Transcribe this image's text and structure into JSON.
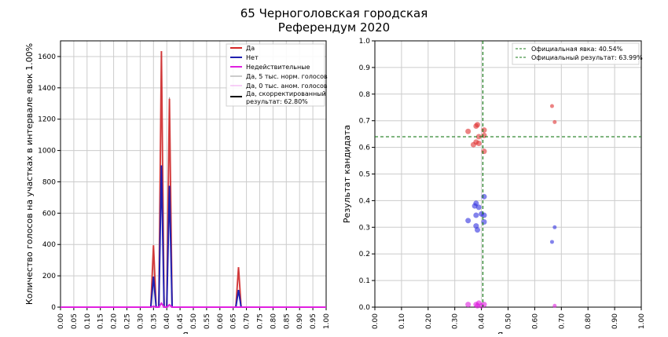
{
  "title": "65 Черноголовская городская",
  "subtitle": "Референдум 2020",
  "chart_data": [
    {
      "type": "line",
      "xlabel": "Явка",
      "ylabel": "Количество голосов на участках в интервале явок 1.00%",
      "xlim": [
        0,
        1
      ],
      "ylim": [
        0,
        1700
      ],
      "xticks": [
        "0.00",
        "0.05",
        "0.10",
        "0.15",
        "0.20",
        "0.25",
        "0.30",
        "0.35",
        "0.40",
        "0.45",
        "0.50",
        "0.55",
        "0.60",
        "0.65",
        "0.70",
        "0.75",
        "0.80",
        "0.85",
        "0.90",
        "0.95",
        "1.00"
      ],
      "yticks": [
        "0",
        "200",
        "400",
        "600",
        "800",
        "1000",
        "1200",
        "1400",
        "1600"
      ],
      "grid": true,
      "legend_position": "top-right",
      "peaks_x": [
        0.35,
        0.38,
        0.41,
        0.67
      ],
      "series": [
        {
          "name": "Да",
          "color": "#d62728",
          "values": [
            395,
            1635,
            1330,
            255
          ]
        },
        {
          "name": "Нет",
          "color": "#2020b0",
          "values": [
            195,
            905,
            775,
            110
          ]
        },
        {
          "name": "Недействительные",
          "color": "#e020e0",
          "values": [
            5,
            25,
            15,
            0
          ]
        },
        {
          "name": "Да, 5 тыс. норм. голосов",
          "color": "#999999",
          "values": [
            390,
            1630,
            1340,
            250
          ]
        },
        {
          "name": "Да, 0 тыс. аном. голосов",
          "color": "#f0a0f0",
          "values": [
            0,
            0,
            0,
            0
          ]
        },
        {
          "name": "Да, скорректированный результат: 62.80%",
          "color": "#000000",
          "values": []
        }
      ]
    },
    {
      "type": "scatter",
      "xlabel": "Явка",
      "ylabel": "Результат кандидата",
      "xlim": [
        0,
        1
      ],
      "ylim": [
        0,
        1
      ],
      "xticks": [
        "0.00",
        "0.10",
        "0.20",
        "0.30",
        "0.40",
        "0.50",
        "0.60",
        "0.70",
        "0.80",
        "0.90",
        "1.00"
      ],
      "yticks": [
        "0.0",
        "0.1",
        "0.2",
        "0.3",
        "0.4",
        "0.5",
        "0.6",
        "0.7",
        "0.8",
        "0.9",
        "1.0"
      ],
      "grid": true,
      "legend_position": "top-right",
      "official_turnout": 0.4054,
      "official_result": 0.6399,
      "legend": [
        "Официальная явка: 40.54%",
        "Официальный результат: 63.99%"
      ],
      "series": [
        {
          "color": "#e03030",
          "points": [
            [
              0.35,
              0.66
            ],
            [
              0.38,
              0.68
            ],
            [
              0.385,
              0.685
            ],
            [
              0.41,
              0.665
            ],
            [
              0.39,
              0.64
            ],
            [
              0.41,
              0.645
            ],
            [
              0.37,
              0.61
            ],
            [
              0.38,
              0.62
            ],
            [
              0.41,
              0.585
            ],
            [
              0.39,
              0.615
            ],
            [
              0.665,
              0.755
            ],
            [
              0.675,
              0.695
            ]
          ]
        },
        {
          "color": "#3030e0",
          "points": [
            [
              0.41,
              0.415
            ],
            [
              0.38,
              0.39
            ],
            [
              0.375,
              0.38
            ],
            [
              0.39,
              0.375
            ],
            [
              0.38,
              0.345
            ],
            [
              0.4,
              0.35
            ],
            [
              0.41,
              0.345
            ],
            [
              0.35,
              0.325
            ],
            [
              0.41,
              0.32
            ],
            [
              0.38,
              0.305
            ],
            [
              0.385,
              0.29
            ],
            [
              0.675,
              0.3
            ],
            [
              0.665,
              0.245
            ]
          ]
        },
        {
          "color": "#e020e0",
          "points": [
            [
              0.35,
              0.01
            ],
            [
              0.38,
              0.01
            ],
            [
              0.39,
              0.015
            ],
            [
              0.4,
              0.005
            ],
            [
              0.41,
              0.01
            ],
            [
              0.385,
              0.005
            ],
            [
              0.675,
              0.005
            ]
          ]
        }
      ]
    }
  ]
}
